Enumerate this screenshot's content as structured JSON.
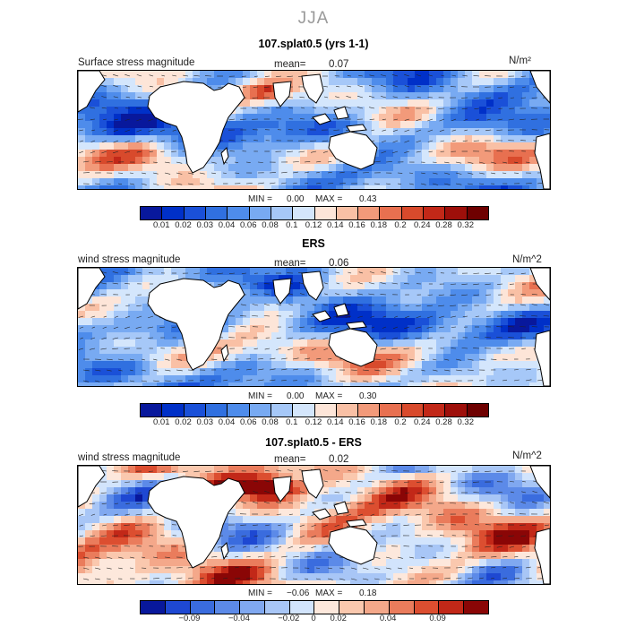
{
  "figure": {
    "season": "JJA"
  },
  "colors": {
    "seq": [
      "#08189c",
      "#0030c8",
      "#1a50d8",
      "#3070e0",
      "#4e8ceb",
      "#78aaf2",
      "#a6c8f8",
      "#d4e6fc",
      "#fde5d8",
      "#f9c0a5",
      "#f29a7a",
      "#e87050",
      "#d84a2c",
      "#c22818",
      "#9e0f0a",
      "#6e0000"
    ],
    "div": [
      "#08189c",
      "#1e48d2",
      "#3a6cde",
      "#5c8ae8",
      "#80a8f0",
      "#a8c6f6",
      "#d2e4fc",
      "#fde8dc",
      "#fac8ae",
      "#f4a88a",
      "#ea7c5c",
      "#dc4e30",
      "#c22818",
      "#8a0606"
    ],
    "land": "#ffffff",
    "coast": "#000000"
  },
  "chart_data": [
    {
      "type": "heatmap",
      "title": "107.splat0.5 (yrs 1-1)",
      "left_label": "Surface stress magnitude",
      "mean_label": "mean=",
      "mean": "0.07",
      "units": "N/m²",
      "min_label": "MIN =",
      "min": "0.00",
      "max_label": "MAX =",
      "max": "0.43",
      "palette": "seq",
      "colorbar_ticks": [
        "0.01",
        "0.02",
        "0.03",
        "0.04",
        "0.06",
        "0.08",
        "0.1",
        "0.12",
        "0.14",
        "0.16",
        "0.18",
        "0.2",
        "0.24",
        "0.28",
        "0.32"
      ]
    },
    {
      "type": "heatmap",
      "title": "ERS",
      "left_label": "wind stress magnitude",
      "mean_label": "mean=",
      "mean": "0.06",
      "units": "N/m^2",
      "min_label": "MIN =",
      "min": "0.00",
      "max_label": "MAX =",
      "max": "0.30",
      "palette": "seq",
      "colorbar_ticks": [
        "0.01",
        "0.02",
        "0.03",
        "0.04",
        "0.06",
        "0.08",
        "0.1",
        "0.12",
        "0.14",
        "0.16",
        "0.18",
        "0.2",
        "0.24",
        "0.28",
        "0.32"
      ]
    },
    {
      "type": "heatmap",
      "title": "107.splat0.5 - ERS",
      "left_label": "wind stress magnitude",
      "mean_label": "mean=",
      "mean": "0.02",
      "units": "N/m^2",
      "min_label": "MIN =",
      "min": "−0.06",
      "max_label": "MAX =",
      "max": "0.18",
      "palette": "div",
      "colorbar_ticks": [
        "−0.09",
        "−0.04",
        "−0.02",
        "0",
        "0.02",
        "0.04",
        "0.09"
      ]
    }
  ]
}
